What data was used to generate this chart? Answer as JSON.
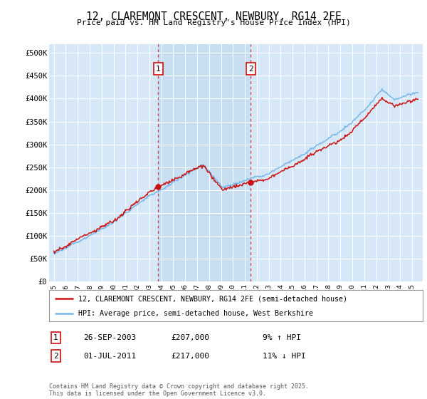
{
  "title": "12, CLAREMONT CRESCENT, NEWBURY, RG14 2FE",
  "subtitle": "Price paid vs. HM Land Registry's House Price Index (HPI)",
  "bg_color": "#d6e8f7",
  "shaded_color": "#c8dff2",
  "fig_bg_color": "#ffffff",
  "hpi_color": "#7ab8e8",
  "price_color": "#cc1111",
  "sale1_date_num": 2003.74,
  "sale1_price": 207000,
  "sale1_label": "1",
  "sale2_date_num": 2011.5,
  "sale2_price": 217000,
  "sale2_label": "2",
  "ylim": [
    0,
    520000
  ],
  "xlim_start": 1994.6,
  "xlim_end": 2025.9,
  "legend_line1": "12, CLAREMONT CRESCENT, NEWBURY, RG14 2FE (semi-detached house)",
  "legend_line2": "HPI: Average price, semi-detached house, West Berkshire",
  "table_row1_num": "1",
  "table_row1_date": "26-SEP-2003",
  "table_row1_price": "£207,000",
  "table_row1_hpi": "9% ↑ HPI",
  "table_row2_num": "2",
  "table_row2_date": "01-JUL-2011",
  "table_row2_price": "£217,000",
  "table_row2_hpi": "11% ↓ HPI",
  "footer": "Contains HM Land Registry data © Crown copyright and database right 2025.\nThis data is licensed under the Open Government Licence v3.0.",
  "yticks": [
    0,
    50000,
    100000,
    150000,
    200000,
    250000,
    300000,
    350000,
    400000,
    450000,
    500000
  ],
  "ytick_labels": [
    "£0",
    "£50K",
    "£100K",
    "£150K",
    "£200K",
    "£250K",
    "£300K",
    "£350K",
    "£400K",
    "£450K",
    "£500K"
  ],
  "xticks": [
    1995,
    1996,
    1997,
    1998,
    1999,
    2000,
    2001,
    2002,
    2003,
    2004,
    2005,
    2006,
    2007,
    2008,
    2009,
    2010,
    2011,
    2012,
    2013,
    2014,
    2015,
    2016,
    2017,
    2018,
    2019,
    2020,
    2021,
    2022,
    2023,
    2024,
    2025
  ]
}
